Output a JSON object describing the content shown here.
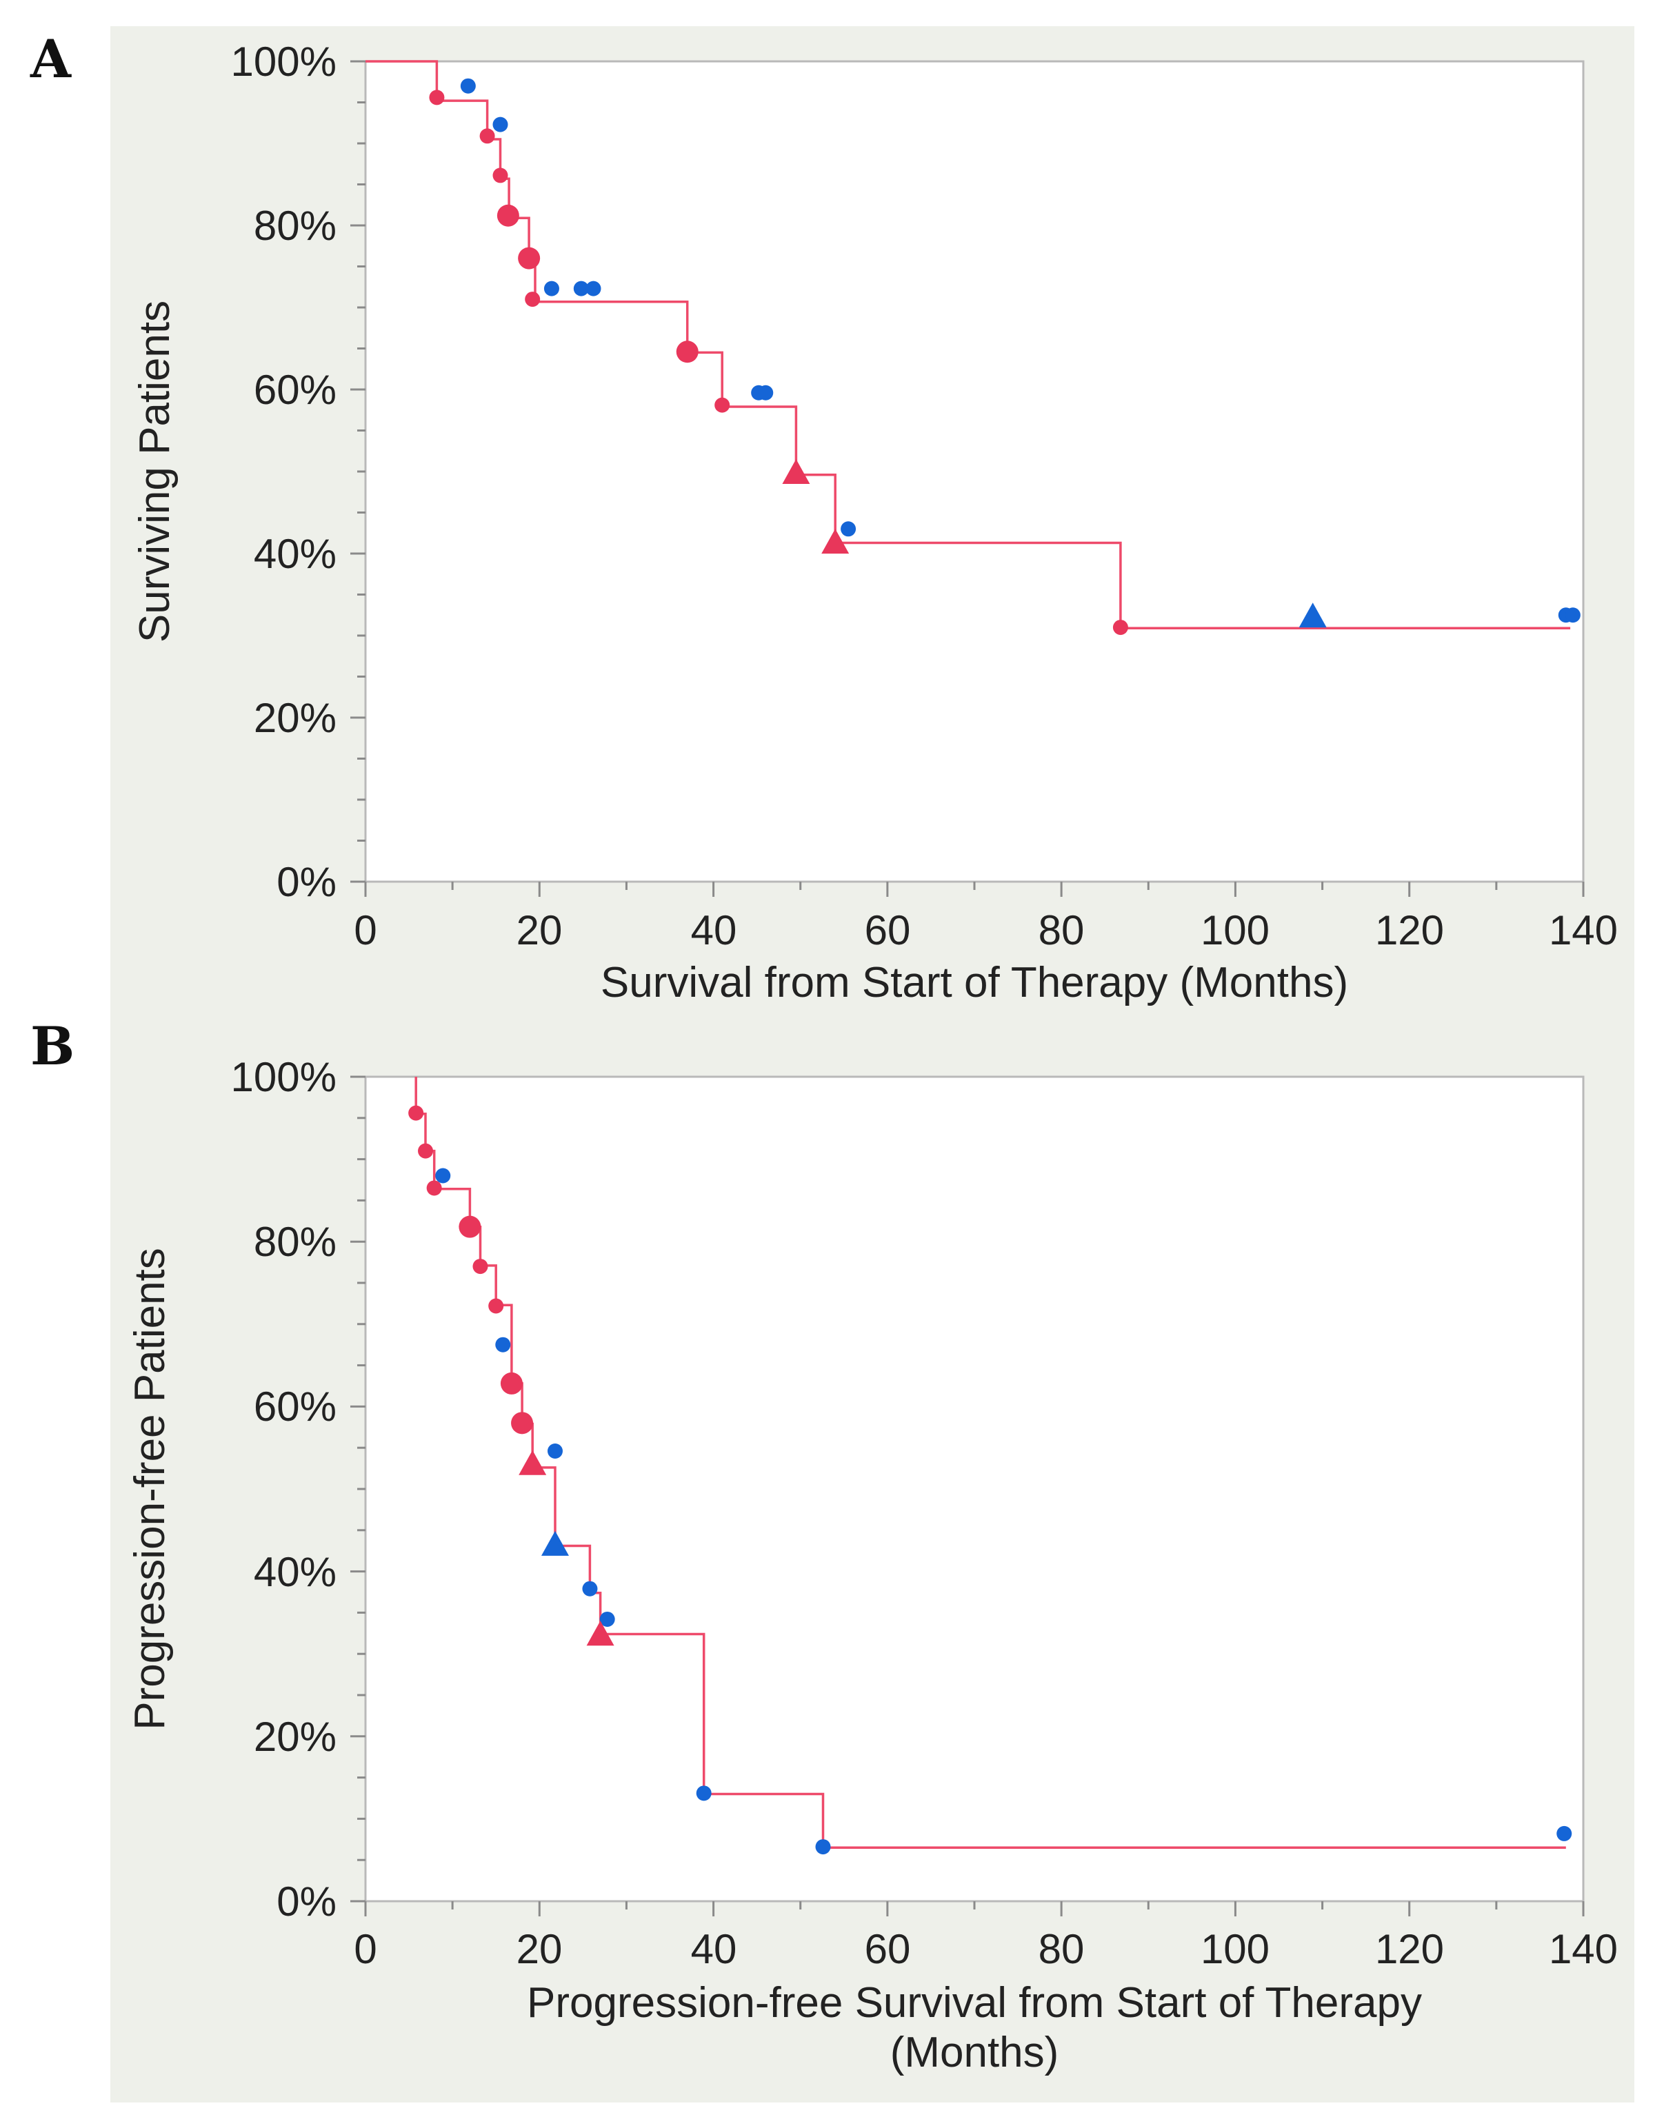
{
  "colors": {
    "event": "#e8365a",
    "censored": "#1565d6",
    "curve": "#ee4a6a",
    "background": "#eef0ea"
  },
  "chart_data": [
    {
      "panel": "A",
      "type": "line",
      "subtype": "kaplan-meier step",
      "xlabel": [
        "Survival from Start of Therapy (Months)"
      ],
      "ylabel": "Surviving Patients",
      "xlim": [
        0,
        140
      ],
      "ylim": [
        0,
        100
      ],
      "xticks": [
        "0",
        "20",
        "40",
        "60",
        "80",
        "100",
        "120",
        "140"
      ],
      "yticks": [
        "0%",
        "20%",
        "40%",
        "60%",
        "80%",
        "100%"
      ],
      "curve": {
        "x": [
          0,
          8.2,
          8.2,
          14,
          14,
          15.5,
          15.5,
          16.5,
          16.5,
          18.8,
          18.8,
          19.5,
          19.5,
          37,
          37,
          41,
          41,
          49.5,
          49.5,
          54,
          54,
          86.8,
          86.8,
          138.5
        ],
        "y": [
          100,
          100,
          95.2,
          95.2,
          90.5,
          90.5,
          85.7,
          85.7,
          80.9,
          80.9,
          76.1,
          76.1,
          70.7,
          70.7,
          64.5,
          64.5,
          57.9,
          57.9,
          49.6,
          49.6,
          41.3,
          41.3,
          30.9,
          30.9
        ]
      },
      "markers": [
        {
          "x": 8.2,
          "y": 95.6,
          "color": "red",
          "shape": "circle",
          "size": "small"
        },
        {
          "x": 11.8,
          "y": 97.0,
          "color": "blue",
          "shape": "circle",
          "size": "small"
        },
        {
          "x": 14.0,
          "y": 90.9,
          "color": "red",
          "shape": "circle",
          "size": "small"
        },
        {
          "x": 15.5,
          "y": 92.3,
          "color": "blue",
          "shape": "circle",
          "size": "small"
        },
        {
          "x": 15.5,
          "y": 86.1,
          "color": "red",
          "shape": "circle",
          "size": "small"
        },
        {
          "x": 16.4,
          "y": 81.2,
          "color": "red",
          "shape": "circle",
          "size": "large"
        },
        {
          "x": 18.8,
          "y": 76.0,
          "color": "red",
          "shape": "circle",
          "size": "large"
        },
        {
          "x": 19.2,
          "y": 71.0,
          "color": "red",
          "shape": "circle",
          "size": "small"
        },
        {
          "x": 21.4,
          "y": 72.3,
          "color": "blue",
          "shape": "circle",
          "size": "small"
        },
        {
          "x": 24.8,
          "y": 72.3,
          "color": "blue",
          "shape": "circle",
          "size": "small"
        },
        {
          "x": 26.2,
          "y": 72.3,
          "color": "blue",
          "shape": "circle",
          "size": "small"
        },
        {
          "x": 37.0,
          "y": 64.6,
          "color": "red",
          "shape": "circle",
          "size": "large"
        },
        {
          "x": 41.0,
          "y": 58.1,
          "color": "red",
          "shape": "circle",
          "size": "small"
        },
        {
          "x": 45.2,
          "y": 59.6,
          "color": "blue",
          "shape": "circle",
          "size": "small"
        },
        {
          "x": 46.0,
          "y": 59.6,
          "color": "blue",
          "shape": "circle",
          "size": "small"
        },
        {
          "x": 49.5,
          "y": 50.0,
          "color": "red",
          "shape": "triangle",
          "size": "large"
        },
        {
          "x": 54.0,
          "y": 41.5,
          "color": "red",
          "shape": "triangle",
          "size": "large"
        },
        {
          "x": 55.5,
          "y": 43.0,
          "color": "blue",
          "shape": "circle",
          "size": "small"
        },
        {
          "x": 86.8,
          "y": 31.0,
          "color": "red",
          "shape": "circle",
          "size": "small"
        },
        {
          "x": 108.9,
          "y": 32.5,
          "color": "blue",
          "shape": "triangle",
          "size": "large"
        },
        {
          "x": 138.0,
          "y": 32.5,
          "color": "blue",
          "shape": "circle",
          "size": "small"
        },
        {
          "x": 138.8,
          "y": 32.5,
          "color": "blue",
          "shape": "circle",
          "size": "small"
        }
      ]
    },
    {
      "panel": "B",
      "type": "line",
      "subtype": "kaplan-meier step",
      "xlabel": [
        "Progression-free Survival from Start of Therapy",
        "(Months)"
      ],
      "ylabel": "Progression-free Patients",
      "xlim": [
        0,
        140
      ],
      "ylim": [
        0,
        100
      ],
      "xticks": [
        "0",
        "20",
        "40",
        "60",
        "80",
        "100",
        "120",
        "140"
      ],
      "yticks": [
        "0%",
        "20%",
        "40%",
        "60%",
        "80%",
        "100%"
      ],
      "curve": {
        "x": [
          5.8,
          5.8,
          6.9,
          6.9,
          7.9,
          7.9,
          12,
          12,
          13.2,
          13.2,
          15,
          15,
          16.8,
          16.8,
          18,
          18,
          19.2,
          19.2,
          21.8,
          21.8,
          25.8,
          25.8,
          27,
          27,
          38.9,
          38.9,
          52.6,
          52.6,
          138
        ],
        "y": [
          100,
          95.5,
          95.5,
          91,
          91,
          86.4,
          86.4,
          81.8,
          81.8,
          77.1,
          77.1,
          72.3,
          72.3,
          62.8,
          62.8,
          57.9,
          57.9,
          52.6,
          52.6,
          43.1,
          43.1,
          37.4,
          37.4,
          32.4,
          32.4,
          13.0,
          13.0,
          6.5,
          6.5
        ]
      },
      "markers": [
        {
          "x": 5.8,
          "y": 95.6,
          "color": "red",
          "shape": "circle",
          "size": "small"
        },
        {
          "x": 6.9,
          "y": 91.0,
          "color": "red",
          "shape": "circle",
          "size": "small"
        },
        {
          "x": 7.9,
          "y": 86.5,
          "color": "red",
          "shape": "circle",
          "size": "small"
        },
        {
          "x": 8.9,
          "y": 88.0,
          "color": "blue",
          "shape": "circle",
          "size": "small"
        },
        {
          "x": 12.0,
          "y": 81.8,
          "color": "red",
          "shape": "circle",
          "size": "large"
        },
        {
          "x": 13.2,
          "y": 77.0,
          "color": "red",
          "shape": "circle",
          "size": "small"
        },
        {
          "x": 15.0,
          "y": 72.2,
          "color": "red",
          "shape": "circle",
          "size": "small"
        },
        {
          "x": 15.8,
          "y": 67.5,
          "color": "blue",
          "shape": "circle",
          "size": "small"
        },
        {
          "x": 16.8,
          "y": 62.8,
          "color": "red",
          "shape": "circle",
          "size": "large"
        },
        {
          "x": 18.0,
          "y": 58.0,
          "color": "red",
          "shape": "circle",
          "size": "large"
        },
        {
          "x": 19.2,
          "y": 53.2,
          "color": "red",
          "shape": "triangle",
          "size": "large"
        },
        {
          "x": 21.8,
          "y": 54.6,
          "color": "blue",
          "shape": "circle",
          "size": "small"
        },
        {
          "x": 21.8,
          "y": 43.4,
          "color": "blue",
          "shape": "triangle",
          "size": "large"
        },
        {
          "x": 25.8,
          "y": 37.9,
          "color": "blue",
          "shape": "circle",
          "size": "small"
        },
        {
          "x": 27.8,
          "y": 34.2,
          "color": "blue",
          "shape": "circle",
          "size": "small"
        },
        {
          "x": 27.0,
          "y": 32.5,
          "color": "red",
          "shape": "triangle",
          "size": "large"
        },
        {
          "x": 38.9,
          "y": 13.1,
          "color": "blue",
          "shape": "circle",
          "size": "small"
        },
        {
          "x": 52.6,
          "y": 6.6,
          "color": "blue",
          "shape": "circle",
          "size": "small"
        },
        {
          "x": 137.8,
          "y": 8.2,
          "color": "blue",
          "shape": "circle",
          "size": "small"
        }
      ]
    }
  ]
}
